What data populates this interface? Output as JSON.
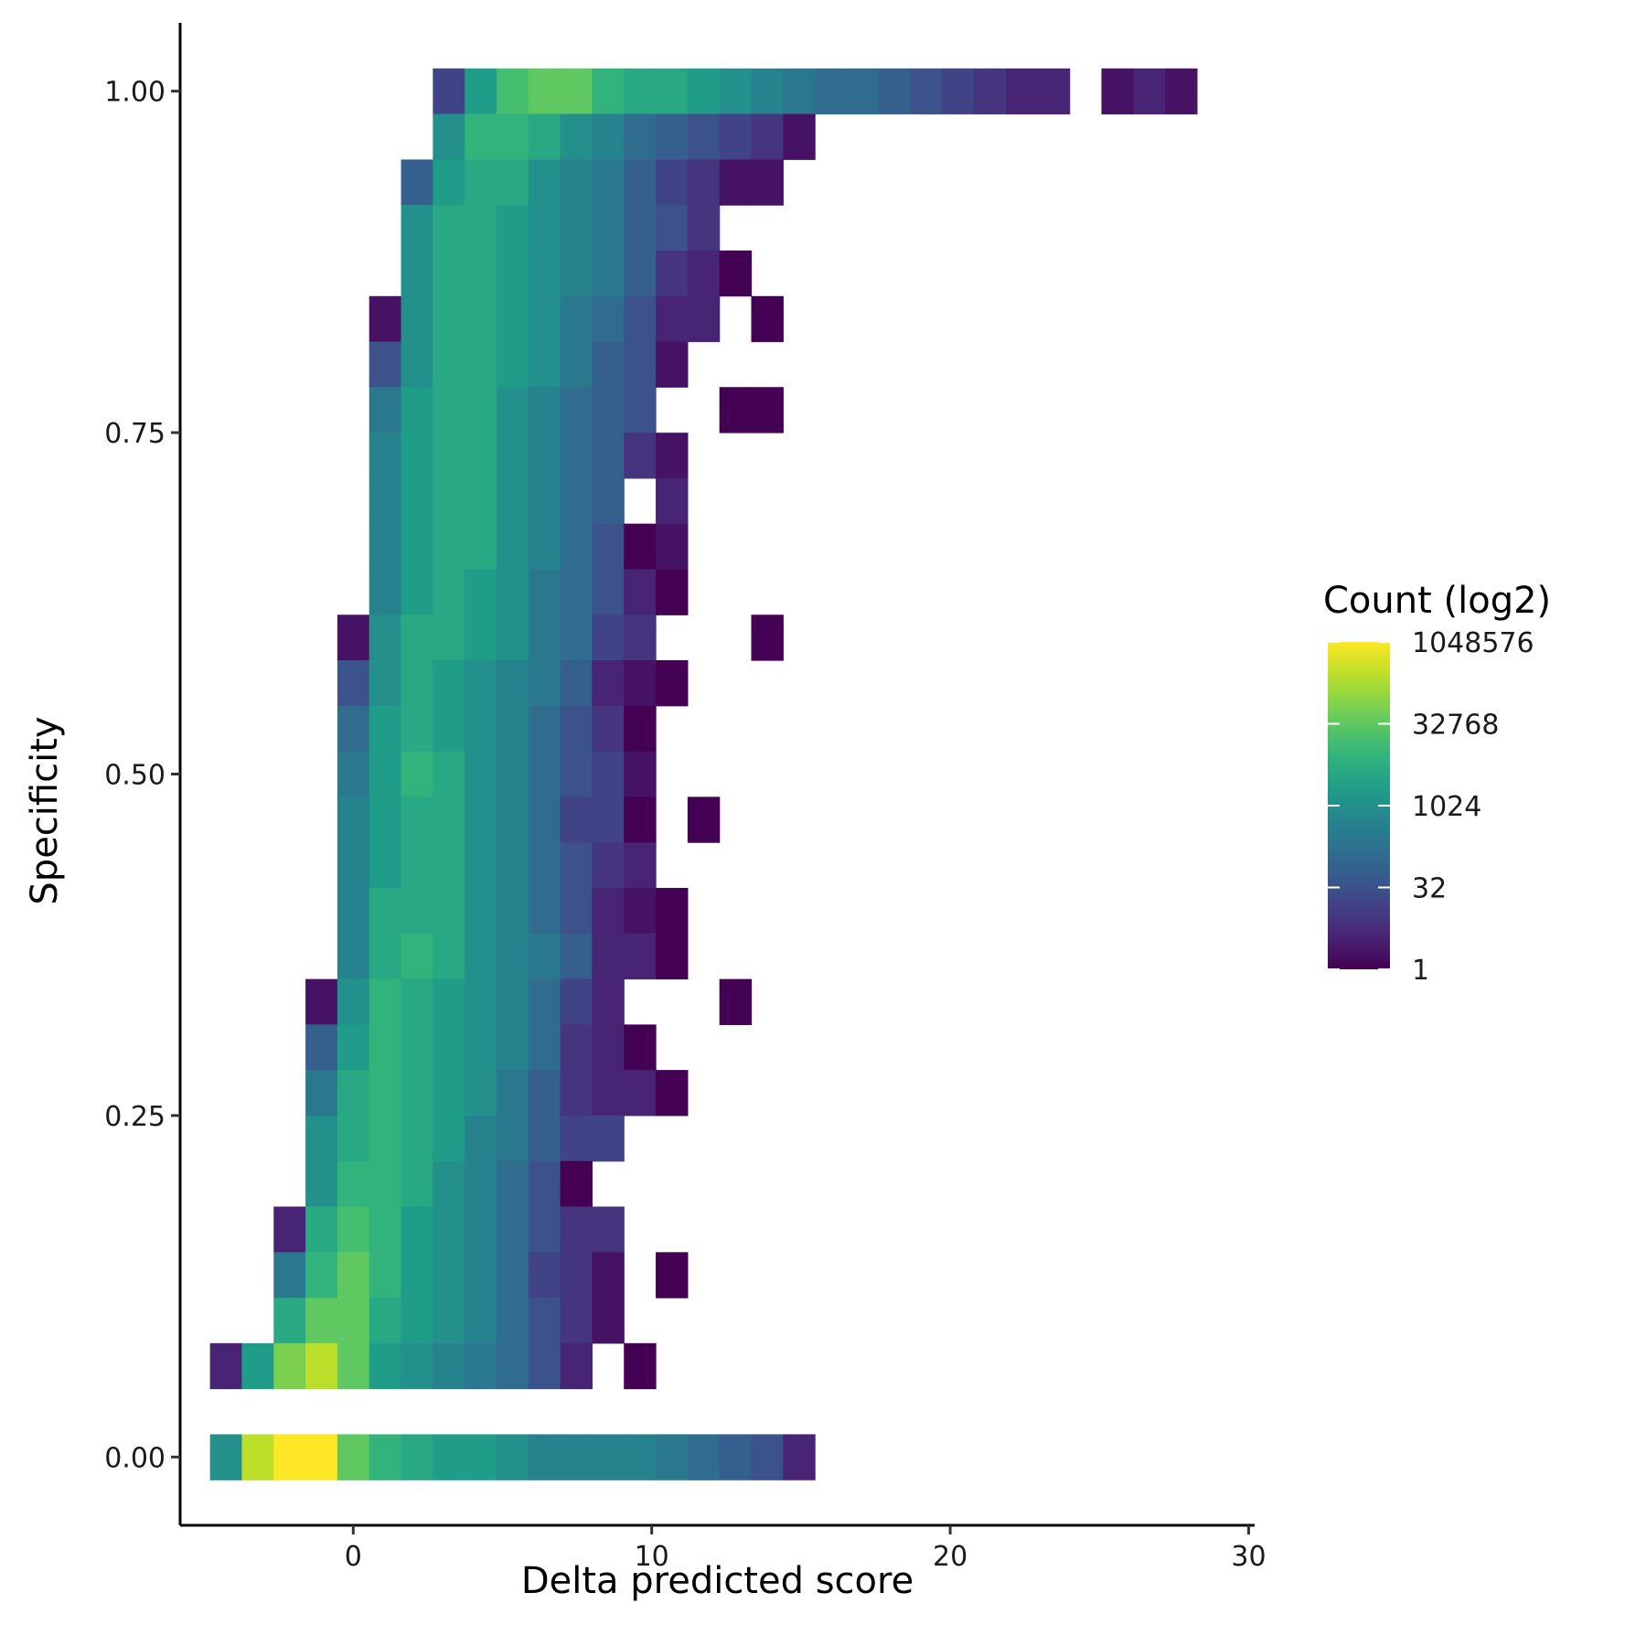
{
  "chart_data": {
    "type": "heatmap",
    "title": "",
    "xlabel": "Delta predicted score",
    "ylabel": "Specificity",
    "xlim": [
      -5.8,
      30.2
    ],
    "ylim": [
      -0.05,
      1.05
    ],
    "x_ticks": [
      0,
      10,
      20,
      30
    ],
    "y_ticks": [
      0.0,
      0.25,
      0.5,
      0.75,
      1.0
    ],
    "x_tick_labels": [
      "0",
      "10",
      "20",
      "30"
    ],
    "y_tick_labels": [
      "0.00",
      "0.25",
      "0.50",
      "0.75",
      "1.00"
    ],
    "grid": false,
    "legend": {
      "title": "Count (log2)",
      "position": "right",
      "scale": "log2",
      "min": 1,
      "max": 1048576,
      "breaks": [
        1,
        32,
        1024,
        32768,
        1048576
      ],
      "break_labels": [
        "1",
        "32",
        "1024",
        "32768",
        "1048576"
      ],
      "palette": "viridis"
    },
    "bin_width_x": 1.0667,
    "bin_height_y": 0.0333,
    "x_bin_start": -4.2667,
    "y_rows": [
      {
        "y": 1.0,
        "x0": 3.2,
        "log2_counts": [
          4,
          11,
          14,
          15,
          15,
          13,
          12,
          12,
          11,
          10,
          9,
          8,
          7,
          7,
          6,
          5,
          4,
          3,
          2,
          2,
          null,
          1,
          2,
          1
        ]
      },
      {
        "y": 0.9667,
        "x0": 3.2,
        "log2_counts": [
          10,
          13,
          13,
          12,
          10,
          9,
          7,
          6,
          5,
          4,
          3,
          1
        ]
      },
      {
        "y": 0.9333,
        "x0": 2.1333,
        "log2_counts": [
          6,
          11,
          12,
          12,
          10,
          9,
          8,
          6,
          4,
          3,
          1,
          1
        ]
      },
      {
        "y": 0.9,
        "x0": 2.1333,
        "log2_counts": [
          10,
          12,
          12,
          11,
          10,
          9,
          8,
          6,
          5,
          3
        ]
      },
      {
        "y": 0.8667,
        "x0": 2.1333,
        "log2_counts": [
          10,
          12,
          12,
          11,
          10,
          9,
          8,
          6,
          3,
          2,
          0
        ]
      },
      {
        "y": 0.8333,
        "x0": 1.0667,
        "log2_counts": [
          1,
          10,
          12,
          12,
          11,
          10,
          8,
          7,
          5,
          2,
          2,
          null,
          0
        ]
      },
      {
        "y": 0.8,
        "x0": 1.0667,
        "log2_counts": [
          5,
          10,
          12,
          12,
          11,
          10,
          8,
          6,
          5,
          1
        ]
      },
      {
        "y": 0.7667,
        "x0": 1.0667,
        "log2_counts": [
          8,
          11,
          12,
          12,
          10,
          9,
          7,
          6,
          5,
          null,
          null,
          0,
          0
        ]
      },
      {
        "y": 0.7333,
        "x0": 1.0667,
        "log2_counts": [
          9,
          11,
          12,
          12,
          10,
          9,
          7,
          6,
          3,
          1
        ]
      },
      {
        "y": 0.7,
        "x0": 1.0667,
        "log2_counts": [
          9,
          11,
          12,
          12,
          10,
          9,
          7,
          6,
          null,
          2
        ]
      },
      {
        "y": 0.6667,
        "x0": 1.0667,
        "log2_counts": [
          9,
          11,
          12,
          12,
          10,
          9,
          7,
          5,
          0,
          1
        ]
      },
      {
        "y": 0.6333,
        "x0": 1.0667,
        "log2_counts": [
          9,
          11,
          12,
          11,
          10,
          8,
          7,
          5,
          2,
          0
        ]
      },
      {
        "y": 0.6,
        "x0": 0.0,
        "log2_counts": [
          1,
          10,
          12,
          12,
          11,
          10,
          8,
          7,
          4,
          3,
          null,
          null,
          null,
          0
        ]
      },
      {
        "y": 0.5667,
        "x0": 0.0,
        "log2_counts": [
          5,
          10,
          12,
          11,
          10,
          9,
          8,
          6,
          2,
          1,
          0
        ]
      },
      {
        "y": 0.5333,
        "x0": 0.0,
        "log2_counts": [
          7,
          11,
          12,
          11,
          10,
          9,
          7,
          5,
          3,
          0
        ]
      },
      {
        "y": 0.5,
        "x0": 0.0,
        "log2_counts": [
          8,
          11,
          13,
          12,
          10,
          9,
          7,
          5,
          4,
          1
        ]
      },
      {
        "y": 0.4667,
        "x0": 0.0,
        "log2_counts": [
          9,
          11,
          12,
          12,
          10,
          9,
          7,
          4,
          4,
          0,
          null,
          0
        ]
      },
      {
        "y": 0.4333,
        "x0": 0.0,
        "log2_counts": [
          9,
          11,
          12,
          12,
          10,
          9,
          7,
          5,
          3,
          2
        ]
      },
      {
        "y": 0.4,
        "x0": 0.0,
        "log2_counts": [
          9,
          12,
          12,
          12,
          10,
          9,
          7,
          5,
          2,
          1,
          0
        ]
      },
      {
        "y": 0.3667,
        "x0": 0.0,
        "log2_counts": [
          9,
          12,
          13,
          12,
          10,
          9,
          8,
          6,
          2,
          2,
          0
        ]
      },
      {
        "y": 0.3333,
        "x0": -1.0667,
        "log2_counts": [
          1,
          10,
          13,
          12,
          11,
          10,
          9,
          7,
          4,
          2,
          null,
          null,
          null,
          0
        ]
      },
      {
        "y": 0.3,
        "x0": -1.0667,
        "log2_counts": [
          6,
          11,
          13,
          12,
          11,
          10,
          9,
          7,
          3,
          2,
          0
        ]
      },
      {
        "y": 0.2667,
        "x0": -1.0667,
        "log2_counts": [
          8,
          12,
          13,
          12,
          11,
          10,
          8,
          6,
          3,
          2,
          2,
          0
        ]
      },
      {
        "y": 0.2333,
        "x0": -1.0667,
        "log2_counts": [
          10,
          12,
          13,
          12,
          11,
          9,
          8,
          6,
          4,
          4
        ]
      },
      {
        "y": 0.2,
        "x0": -1.0667,
        "log2_counts": [
          10,
          13,
          13,
          12,
          10,
          9,
          7,
          5,
          0
        ]
      },
      {
        "y": 0.1667,
        "x0": -2.1333,
        "log2_counts": [
          2,
          12,
          14,
          13,
          11,
          10,
          9,
          7,
          5,
          3,
          3
        ]
      },
      {
        "y": 0.1333,
        "x0": -2.1333,
        "log2_counts": [
          8,
          13,
          15,
          13,
          11,
          10,
          9,
          7,
          4,
          3,
          1,
          null,
          0
        ]
      },
      {
        "y": 0.1,
        "x0": -2.1333,
        "log2_counts": [
          12,
          15,
          15,
          12,
          11,
          10,
          9,
          7,
          5,
          3,
          1
        ]
      },
      {
        "y": 0.0667,
        "x0": -4.2667,
        "log2_counts": [
          2,
          11,
          16,
          18,
          15,
          11,
          10,
          9,
          8,
          7,
          5,
          2,
          null,
          0
        ]
      },
      {
        "y": 0.0,
        "x0": -4.2667,
        "log2_counts": [
          10,
          18,
          20,
          20,
          15,
          13,
          12,
          11,
          11,
          10,
          9,
          9,
          9,
          9,
          8,
          7,
          6,
          5,
          2
        ]
      }
    ]
  }
}
